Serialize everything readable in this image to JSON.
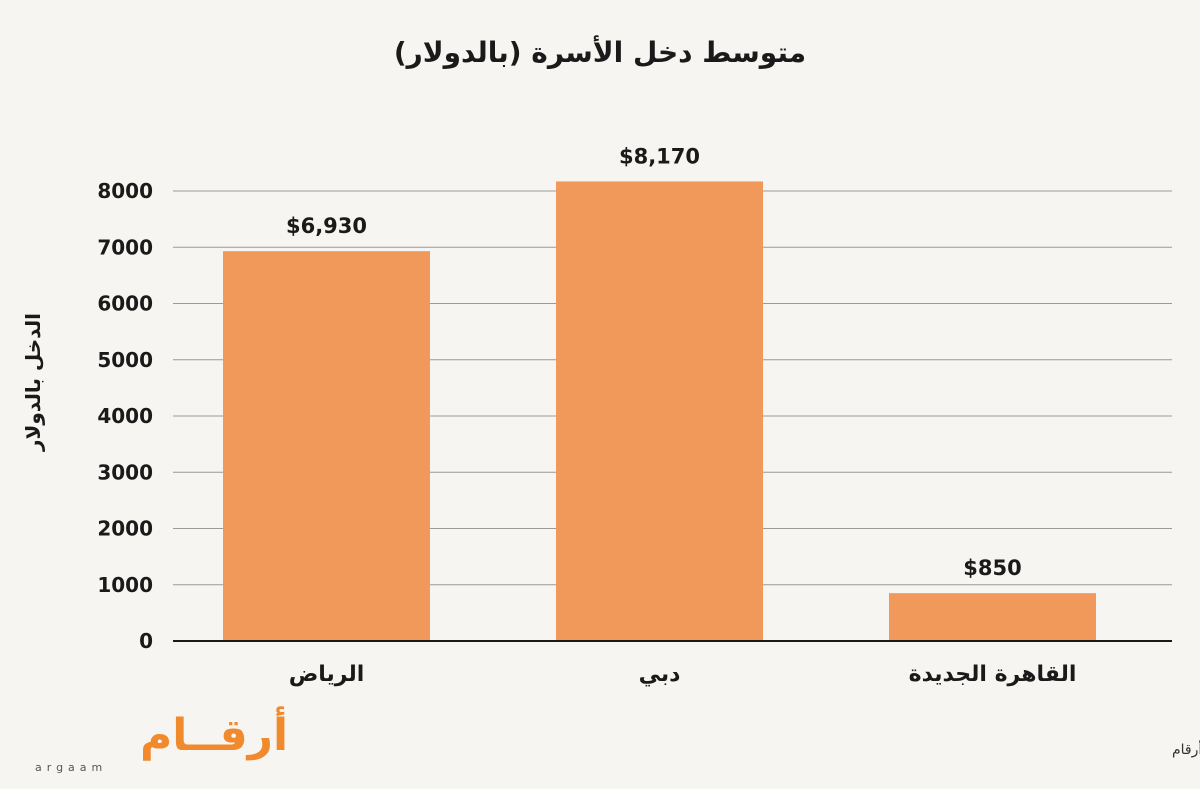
{
  "chart_data": {
    "type": "bar",
    "title": "متوسط دخل الأسرة (بالدولار)",
    "ylabel": "الدخل بالدولار",
    "xlabel": "",
    "categories": [
      "الرياض",
      "دبي",
      "القاهرة الجديدة"
    ],
    "values": [
      6930,
      8170,
      850
    ],
    "value_labels": [
      "$6,930",
      "$8,170",
      "$850"
    ],
    "ylim": [
      0,
      8000
    ],
    "yticks": [
      0,
      1000,
      2000,
      3000,
      4000,
      5000,
      6000,
      7000,
      8000
    ],
    "grid": true,
    "bar_color": "#f0995a"
  },
  "footer": {
    "source": "المصدر: أرقام",
    "logo_ar": "أرقــام",
    "logo_en": "argaam",
    "logo_color": "#f08a2c"
  }
}
